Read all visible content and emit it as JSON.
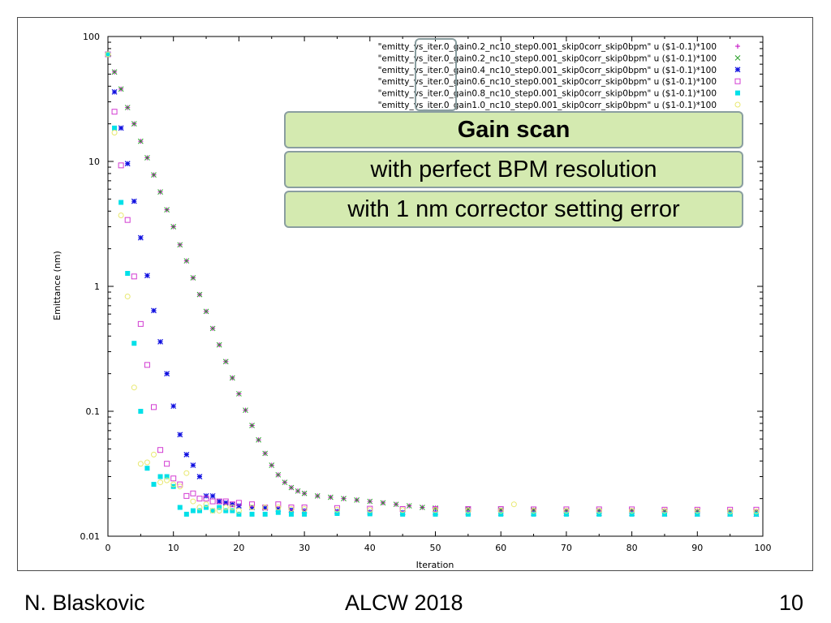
{
  "colors": {
    "gain0_2_a": "#c000c0",
    "gain0_2_b": "#2aa02a",
    "gain0_4": "#1010e0",
    "gain0_6": "#d23cd2",
    "gain0_8": "#00e0e8",
    "gain1_0": "#e8e870",
    "callout_bg": "#d4eab0",
    "callout_border": "#8a9ea0"
  },
  "callouts": {
    "title": "Gain scan",
    "line1": "with perfect BPM resolution",
    "line2": "with 1 nm corrector setting error"
  },
  "footer": {
    "author": "N. Blaskovic",
    "event": "ALCW 2018",
    "page": "10"
  },
  "chart_data": {
    "type": "scatter",
    "xlabel": "Iteration",
    "ylabel": "Emittance (nm)",
    "xlim": [
      0,
      100
    ],
    "ylim": [
      0.01,
      100
    ],
    "yscale": "log",
    "x_ticks": [
      "0",
      "10",
      "20",
      "30",
      "40",
      "50",
      "60",
      "70",
      "80",
      "90",
      "100"
    ],
    "y_ticks": [
      "0.01",
      "0.1",
      "1",
      "10",
      "100"
    ],
    "legend_position": "top-right",
    "grid": false,
    "series": [
      {
        "name": "\"emitty_vs_iter.0_gain0.2_nc10_step0.001_skip0corr_skip0bpm\" u ($1-0.1)*100",
        "marker": "plus",
        "color": "#c000c0",
        "x": [
          0,
          1,
          2,
          3,
          4,
          5,
          6,
          7,
          8,
          9,
          10,
          11,
          12,
          13,
          14,
          15,
          16,
          17,
          18,
          19,
          20,
          21,
          22,
          23,
          24,
          25,
          26,
          27,
          28,
          29,
          30,
          32,
          34,
          36,
          38,
          40,
          42,
          44,
          46,
          48,
          50,
          55,
          60,
          65,
          70,
          75,
          80,
          85,
          90,
          95,
          99
        ],
        "y": [
          72,
          52,
          38,
          27,
          20,
          14.5,
          10.7,
          7.8,
          5.7,
          4.1,
          3.0,
          2.15,
          1.6,
          1.17,
          0.86,
          0.63,
          0.46,
          0.34,
          0.25,
          0.185,
          0.138,
          0.102,
          0.077,
          0.059,
          0.046,
          0.037,
          0.031,
          0.027,
          0.0245,
          0.023,
          0.022,
          0.021,
          0.0205,
          0.02,
          0.0195,
          0.019,
          0.0185,
          0.018,
          0.0175,
          0.017,
          0.0168,
          0.0165,
          0.0163,
          0.0162,
          0.016,
          0.016,
          0.016,
          0.0158,
          0.0158,
          0.0157,
          0.0157
        ]
      },
      {
        "name": "\"emitty_vs_iter.0_gain0.2_nc10_step0.001_skip0corr_skip0bpm\" u ($1-0.1)*100",
        "marker": "cross",
        "color": "#2aa02a",
        "x": [
          0,
          1,
          2,
          3,
          4,
          5,
          6,
          7,
          8,
          9,
          10,
          11,
          12,
          13,
          14,
          15,
          16,
          17,
          18,
          19,
          20,
          21,
          22,
          23,
          24,
          25,
          26,
          27,
          28,
          29,
          30,
          32,
          34,
          36,
          38,
          40,
          42,
          44,
          46,
          48,
          50,
          55,
          60,
          65,
          70,
          75,
          80,
          85,
          90,
          95,
          99
        ],
        "y": [
          72,
          52,
          38,
          27,
          20,
          14.5,
          10.7,
          7.8,
          5.7,
          4.1,
          3.0,
          2.15,
          1.6,
          1.17,
          0.86,
          0.63,
          0.46,
          0.34,
          0.25,
          0.185,
          0.138,
          0.102,
          0.077,
          0.059,
          0.046,
          0.037,
          0.031,
          0.027,
          0.0245,
          0.023,
          0.022,
          0.021,
          0.0205,
          0.02,
          0.0195,
          0.019,
          0.0185,
          0.018,
          0.0175,
          0.017,
          0.0168,
          0.0165,
          0.0163,
          0.0162,
          0.016,
          0.016,
          0.016,
          0.0158,
          0.0158,
          0.0157,
          0.0157
        ]
      },
      {
        "name": "\"emitty_vs_iter.0_gain0.4_nc10_step0.001_skip0corr_skip0bpm\" u ($1-0.1)*100",
        "marker": "star",
        "color": "#1010e0",
        "x": [
          0,
          1,
          2,
          3,
          4,
          5,
          6,
          7,
          8,
          9,
          10,
          11,
          12,
          13,
          14,
          15,
          16,
          17,
          18,
          19,
          20,
          22,
          24,
          26,
          28,
          30,
          35,
          40,
          45,
          50,
          55,
          60,
          65,
          70,
          75,
          80,
          85,
          90,
          95,
          99
        ],
        "y": [
          72,
          36,
          18.5,
          9.6,
          4.8,
          2.45,
          1.22,
          0.64,
          0.36,
          0.2,
          0.11,
          0.065,
          0.045,
          0.037,
          0.03,
          0.021,
          0.021,
          0.019,
          0.0185,
          0.018,
          0.0175,
          0.017,
          0.0168,
          0.0165,
          0.0162,
          0.016,
          0.0158,
          0.0156,
          0.0155,
          0.0155,
          0.0154,
          0.0153,
          0.0153,
          0.0152,
          0.0152,
          0.0152,
          0.0151,
          0.0151,
          0.0151,
          0.015
        ]
      },
      {
        "name": "\"emitty_vs_iter.0_gain0.6_nc10_step0.001_skip0corr_skip0bpm\" u ($1-0.1)*100",
        "marker": "square-open",
        "color": "#d23cd2",
        "x": [
          0,
          1,
          2,
          3,
          4,
          5,
          6,
          7,
          8,
          9,
          10,
          11,
          12,
          13,
          14,
          15,
          16,
          17,
          18,
          19,
          20,
          22,
          24,
          26,
          28,
          30,
          35,
          40,
          45,
          50,
          55,
          60,
          65,
          70,
          75,
          80,
          85,
          90,
          95,
          99
        ],
        "y": [
          72,
          25,
          9.3,
          3.4,
          1.2,
          0.5,
          0.235,
          0.108,
          0.049,
          0.038,
          0.029,
          0.026,
          0.021,
          0.022,
          0.02,
          0.02,
          0.019,
          0.019,
          0.019,
          0.018,
          0.0185,
          0.018,
          0.017,
          0.018,
          0.017,
          0.017,
          0.0168,
          0.0166,
          0.0165,
          0.0165,
          0.0165,
          0.0165,
          0.0164,
          0.0164,
          0.0164,
          0.0164,
          0.0163,
          0.0163,
          0.0163,
          0.0163
        ]
      },
      {
        "name": "\"emitty_vs_iter.0_gain0.8_nc10_step0.001_skip0corr_skip0bpm\" u ($1-0.1)*100",
        "marker": "square-filled",
        "color": "#00e0e8",
        "x": [
          0,
          1,
          2,
          3,
          4,
          5,
          6,
          7,
          8,
          9,
          10,
          11,
          12,
          13,
          14,
          15,
          16,
          17,
          18,
          19,
          20,
          22,
          24,
          26,
          28,
          30,
          35,
          40,
          45,
          50,
          55,
          60,
          65,
          70,
          75,
          80,
          85,
          90,
          95,
          99
        ],
        "y": [
          72,
          18.5,
          4.7,
          1.27,
          0.35,
          0.1,
          0.035,
          0.026,
          0.03,
          0.03,
          0.025,
          0.017,
          0.015,
          0.016,
          0.016,
          0.017,
          0.016,
          0.017,
          0.016,
          0.016,
          0.015,
          0.015,
          0.015,
          0.0155,
          0.015,
          0.015,
          0.0152,
          0.0151,
          0.015,
          0.015,
          0.015,
          0.015,
          0.015,
          0.015,
          0.015,
          0.015,
          0.015,
          0.015,
          0.015,
          0.015
        ]
      },
      {
        "name": "\"emitty_vs_iter.0_gain1.0_nc10_step0.001_skip0corr_skip0bpm\" u ($1-0.1)*100",
        "marker": "circle-open",
        "color": "#e8e870",
        "x": [
          0,
          1,
          2,
          3,
          4,
          5,
          6,
          7,
          8,
          9,
          10,
          11,
          12,
          13,
          14,
          15,
          16,
          17,
          18,
          19,
          20,
          22,
          24,
          26,
          28,
          30,
          35,
          40,
          45,
          50,
          55,
          60,
          62,
          65,
          70,
          75,
          80,
          85,
          90,
          95,
          99
        ],
        "y": [
          72,
          17,
          3.7,
          0.83,
          0.155,
          0.038,
          0.039,
          0.045,
          0.027,
          0.028,
          0.026,
          0.025,
          0.032,
          0.019,
          0.017,
          0.018,
          0.016,
          0.016,
          0.017,
          0.017,
          0.016,
          0.017,
          0.017,
          0.017,
          0.0165,
          0.0165,
          0.0163,
          0.0162,
          0.0162,
          0.0162,
          0.016,
          0.016,
          0.018,
          0.016,
          0.016,
          0.016,
          0.016,
          0.016,
          0.016,
          0.0158,
          0.0158
        ]
      }
    ]
  }
}
